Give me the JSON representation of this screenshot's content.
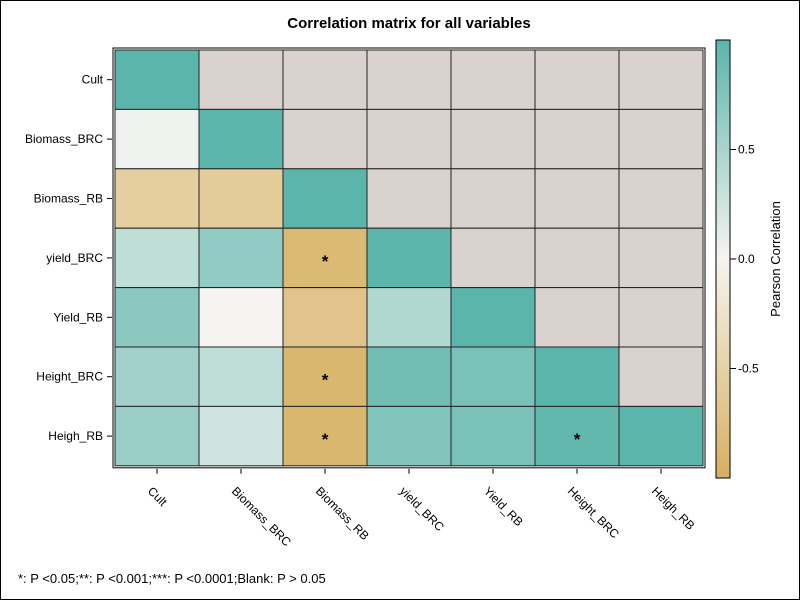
{
  "chart_data": {
    "type": "heatmap",
    "title": "Correlation matrix for all variables",
    "rows": [
      "Cult",
      "Biomass_BRC",
      "Biomass_RB",
      "yield_BRC",
      "Yield_RB",
      "Height_BRC",
      "Heigh_RB"
    ],
    "columns": [
      "Cult",
      "Biomass_BRC",
      "Biomass_RB",
      "yield_BRC",
      "Yield_RB",
      "Height_BRC",
      "Heigh_RB"
    ],
    "values": [
      [
        1.0,
        null,
        null,
        null,
        null,
        null,
        null
      ],
      [
        0.05,
        1.0,
        null,
        null,
        null,
        null,
        null
      ],
      [
        -0.55,
        -0.6,
        1.0,
        null,
        null,
        null,
        null
      ],
      [
        0.35,
        0.65,
        -0.85,
        1.0,
        null,
        null,
        null
      ],
      [
        0.7,
        0.0,
        -0.7,
        0.45,
        1.0,
        null,
        null
      ],
      [
        0.55,
        0.35,
        -0.9,
        0.85,
        0.8,
        1.0,
        null
      ],
      [
        0.6,
        0.25,
        -0.9,
        0.75,
        0.8,
        0.95,
        1.0
      ]
    ],
    "significance": [
      [
        "",
        "",
        "",
        "",
        "",
        "",
        ""
      ],
      [
        "",
        "",
        "",
        "",
        "",
        "",
        ""
      ],
      [
        "",
        "",
        "",
        "",
        "",
        "",
        ""
      ],
      [
        "",
        "",
        "*",
        "",
        "",
        "",
        ""
      ],
      [
        "",
        "",
        "",
        "",
        "",
        "",
        ""
      ],
      [
        "",
        "",
        "*",
        "",
        "",
        "",
        ""
      ],
      [
        "",
        "",
        "*",
        "",
        "",
        "*",
        ""
      ]
    ],
    "colorbar": {
      "label": "Pearson Correlation",
      "range": [
        -1,
        1
      ],
      "ticks": [
        "0.5",
        "0.0",
        "-0.5"
      ],
      "tick_values": [
        0.5,
        0.0,
        -0.5
      ],
      "colors": {
        "high": "#5bb5ab",
        "mid": "#f6f4f0",
        "low": "#d6b060",
        "missing": "#d9d2cf"
      }
    },
    "footnote": "*: P <0.05;**: P <0.001;***: P <0.0001;Blank: P > 0.05"
  }
}
